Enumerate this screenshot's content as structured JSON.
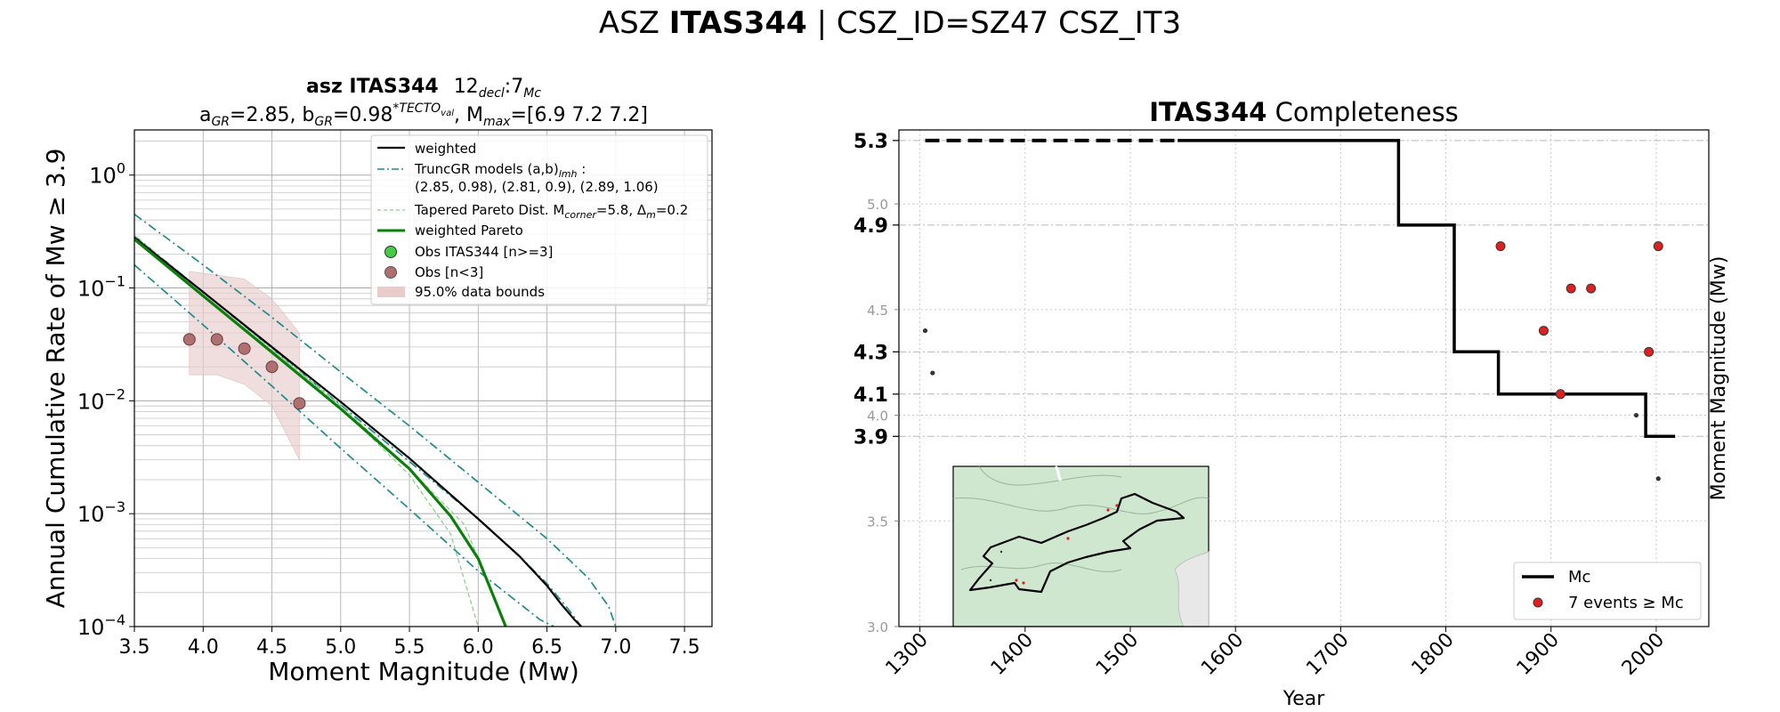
{
  "suptitle": {
    "prefix": "ASZ",
    "bold": "ITAS344",
    "suffix": "| CSZ_ID=SZ47 CSZ_IT3"
  },
  "chart_data": [
    {
      "type": "line",
      "title_line1": {
        "bold": "asz ITAS344",
        "decl": "12",
        "decl_sub": "decl",
        "mc": ":7",
        "mc_sub": "Mc"
      },
      "title_line2": {
        "a_label": "a",
        "a_sub": "GR",
        "a_val": "=2.85,  b",
        "b_sub": "GR",
        "b_val": "=0.98",
        "b_sup": "*TECTO",
        "b_sup_sub": "val",
        "mmax": ", M",
        "mmax_sub": "max",
        "mmax_val": "=[6.9 7.2 7.2]"
      },
      "xlabel": "Moment Magnitude (Mw)",
      "ylabel": "Annual Cumulative Rate of Mw  ≥  3.9",
      "xlim": [
        3.5,
        7.7
      ],
      "ylim_log10": [
        -4,
        0.4
      ],
      "x_ticks": [
        "3.5",
        "4.0",
        "4.5",
        "5.0",
        "5.5",
        "6.0",
        "6.5",
        "7.0",
        "7.5"
      ],
      "y_ticks": [
        {
          "base": "10",
          "exp": "0"
        },
        {
          "base": "10",
          "exp": "−1"
        },
        {
          "base": "10",
          "exp": "−2"
        },
        {
          "base": "10",
          "exp": "−3"
        },
        {
          "base": "10",
          "exp": "−4"
        }
      ],
      "grid": true,
      "legend_position": "top-right",
      "legend": {
        "weighted": "weighted",
        "truncgr_1": "TruncGR models (a,b)",
        "truncgr_1_sub": "lmh",
        "truncgr_1_tail": " :",
        "truncgr_2": " (2.85, 0.98), (2.81, 0.9), (2.89, 1.06)",
        "tapered": "Tapered Pareto Dist. M",
        "tapered_sub1": "corner",
        "tapered_mid": "=5.8, Δ",
        "tapered_sub2": "m",
        "tapered_tail": "=0.2",
        "weighted_pareto": "weighted Pareto",
        "obs_green": "Obs ITAS344 [n>=3]",
        "obs_brown": "Obs [n<3]",
        "bounds": "95.0% data bounds"
      },
      "colors": {
        "weighted": "#000000",
        "truncgr": "#1f8a8a",
        "tapered": "#8fcf8f",
        "weighted_pareto": "#0a800a",
        "obs_green": "#44cc44",
        "obs_brown": "#b07070",
        "bounds": "#e8cccc"
      },
      "series": [
        {
          "name": "weighted",
          "x": [
            3.5,
            4.0,
            4.5,
            5.0,
            5.5,
            6.0,
            6.3,
            6.5,
            6.6,
            6.7,
            6.75
          ],
          "y": [
            0.28,
            0.092,
            0.03,
            0.0098,
            0.0031,
            0.0009,
            0.00042,
            0.00023,
            0.00016,
            0.000115,
            0.0001
          ]
        },
        {
          "name": "TruncGR models (a,b)lmh",
          "x": [
            3.5,
            4.0,
            4.5,
            5.0,
            5.5,
            6.0,
            6.5,
            6.8,
            6.95,
            7.0
          ],
          "y": [
            0.45,
            0.16,
            0.055,
            0.018,
            0.006,
            0.0019,
            0.0006,
            0.00027,
            0.00015,
            0.0001
          ]
        },
        {
          "name": "TruncGR models (a,b)lmh",
          "x": [
            3.5,
            4.0,
            4.5,
            5.0,
            5.5,
            6.0,
            6.3,
            6.5,
            6.65,
            6.75
          ],
          "y": [
            0.29,
            0.092,
            0.029,
            0.0092,
            0.0029,
            0.0009,
            0.00042,
            0.00024,
            0.000145,
            0.0001
          ]
        },
        {
          "name": "TruncGR models (a,b)lmh",
          "x": [
            3.5,
            4.0,
            4.5,
            5.0,
            5.5,
            6.0,
            6.3,
            6.45,
            6.55
          ],
          "y": [
            0.16,
            0.047,
            0.0135,
            0.0038,
            0.0011,
            0.00031,
            0.00016,
            0.000115,
            0.0001
          ]
        },
        {
          "name": "Tapered Pareto Dist.",
          "x": [
            3.5,
            4.0,
            4.5,
            5.0,
            5.5,
            5.8,
            6.0
          ],
          "y": [
            0.29,
            0.092,
            0.029,
            0.0088,
            0.0022,
            0.00066,
            0.0001
          ]
        },
        {
          "name": "Tapered Pareto Dist.",
          "x": [
            3.5,
            4.0,
            4.5,
            5.0,
            5.5,
            5.9,
            6.2
          ],
          "y": [
            0.29,
            0.092,
            0.029,
            0.0091,
            0.0025,
            0.0008,
            0.0001
          ]
        },
        {
          "name": "weighted Pareto",
          "x": [
            3.5,
            4.0,
            4.5,
            5.0,
            5.5,
            5.8,
            6.0,
            6.1,
            6.2
          ],
          "y": [
            0.27,
            0.085,
            0.027,
            0.0085,
            0.0025,
            0.00095,
            0.0004,
            0.0002,
            0.0001
          ]
        }
      ],
      "observations": {
        "x": [
          3.9,
          4.1,
          4.3,
          4.5,
          4.7
        ],
        "y": [
          0.035,
          0.035,
          0.029,
          0.02,
          0.0095
        ]
      },
      "bounds": {
        "x": [
          3.9,
          4.1,
          4.3,
          4.5,
          4.7
        ],
        "upper": [
          0.14,
          0.13,
          0.12,
          0.08,
          0.04
        ],
        "lower": [
          0.017,
          0.017,
          0.014,
          0.009,
          0.003
        ]
      }
    },
    {
      "type": "scatter",
      "title": {
        "bold": "ITAS344",
        "rest": " Completeness"
      },
      "xlabel": "Year",
      "ylabel": "Moment Magnitude (Mw)",
      "xlim": [
        1280,
        2050
      ],
      "ylim": [
        3.0,
        5.35
      ],
      "x_ticks": [
        "1300",
        "1400",
        "1500",
        "1600",
        "1700",
        "1800",
        "1900",
        "2000"
      ],
      "y_ticks_minor": [
        "3.0",
        "3.5",
        "4.0",
        "4.5",
        "5.0"
      ],
      "y_ticks_major": [
        "3.9",
        "4.1",
        "4.3",
        "4.9",
        "5.3"
      ],
      "grid": true,
      "legend_position": "bottom-right",
      "legend": {
        "mc": "Mc",
        "events": "7 events  ≥  Mc"
      },
      "colors": {
        "mc": "#000000",
        "events": "#e02020",
        "small": "#333333",
        "inset_bg": "#cfe6cf"
      },
      "mc_steps": {
        "x": [
          1305,
          1755,
          1755,
          1808,
          1808,
          1850,
          1850,
          1990,
          1990,
          2018
        ],
        "y": [
          5.3,
          5.3,
          4.9,
          4.9,
          4.3,
          4.3,
          4.1,
          4.1,
          3.9,
          3.9
        ],
        "dashed_until": 1545
      },
      "events": {
        "x": [
          1852,
          1893,
          1909,
          1919,
          1938,
          1993,
          2002
        ],
        "y": [
          4.8,
          4.4,
          4.1,
          4.6,
          4.6,
          4.3,
          4.8
        ]
      },
      "small_events": {
        "x": [
          1305,
          1312,
          1981,
          2002
        ],
        "y": [
          4.4,
          4.2,
          4.0,
          3.7
        ]
      }
    }
  ]
}
